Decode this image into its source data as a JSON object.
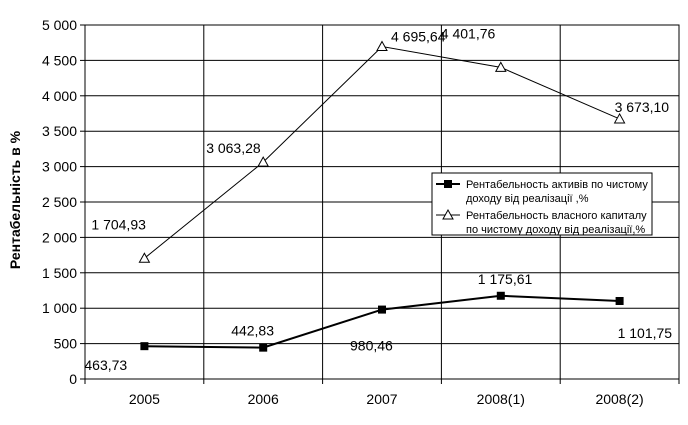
{
  "chart_data": {
    "type": "line",
    "title": "",
    "xlabel": "",
    "ylabel": "Рентабельність в %",
    "categories": [
      "2005",
      "2006",
      "2007",
      "2008(1)",
      "2008(2)"
    ],
    "ylim": [
      0,
      5000
    ],
    "yticks": [
      0,
      500,
      1000,
      1500,
      2000,
      2500,
      3000,
      3500,
      4000,
      4500,
      5000
    ],
    "ytick_labels": [
      "0",
      "500",
      "1 000",
      "1 500",
      "2 000",
      "2 500",
      "3 000",
      "3 500",
      "4 000",
      "4 500",
      "5 000"
    ],
    "grid": true,
    "legend_position": "right",
    "series": [
      {
        "name": "Рентабельность активів по чистому доходу від реалізації ,%",
        "legend_lines": [
          "Рентабельность активів по чистому",
          "доходу від реалізації ,%"
        ],
        "marker": "square",
        "values": [
          463.73,
          442.83,
          980.46,
          1175.61,
          1101.75
        ],
        "labels": [
          "463,73",
          "442,83",
          "980,46",
          "1 175,61",
          "1 101,75"
        ],
        "color": "#000000"
      },
      {
        "name": "Рентабельность власного капиталу по чистому доходу від реалізації,%",
        "legend_lines": [
          "Рентабельность власного капиталу",
          "по чистому доходу від реалізації,%"
        ],
        "marker": "triangle",
        "values": [
          1704.93,
          3063.28,
          4695.64,
          4401.76,
          3673.1
        ],
        "labels": [
          "1 704,93",
          "3 063,28",
          "4 695,64",
          "4 401,76",
          "3 673,10"
        ],
        "color": "#000000"
      }
    ]
  }
}
